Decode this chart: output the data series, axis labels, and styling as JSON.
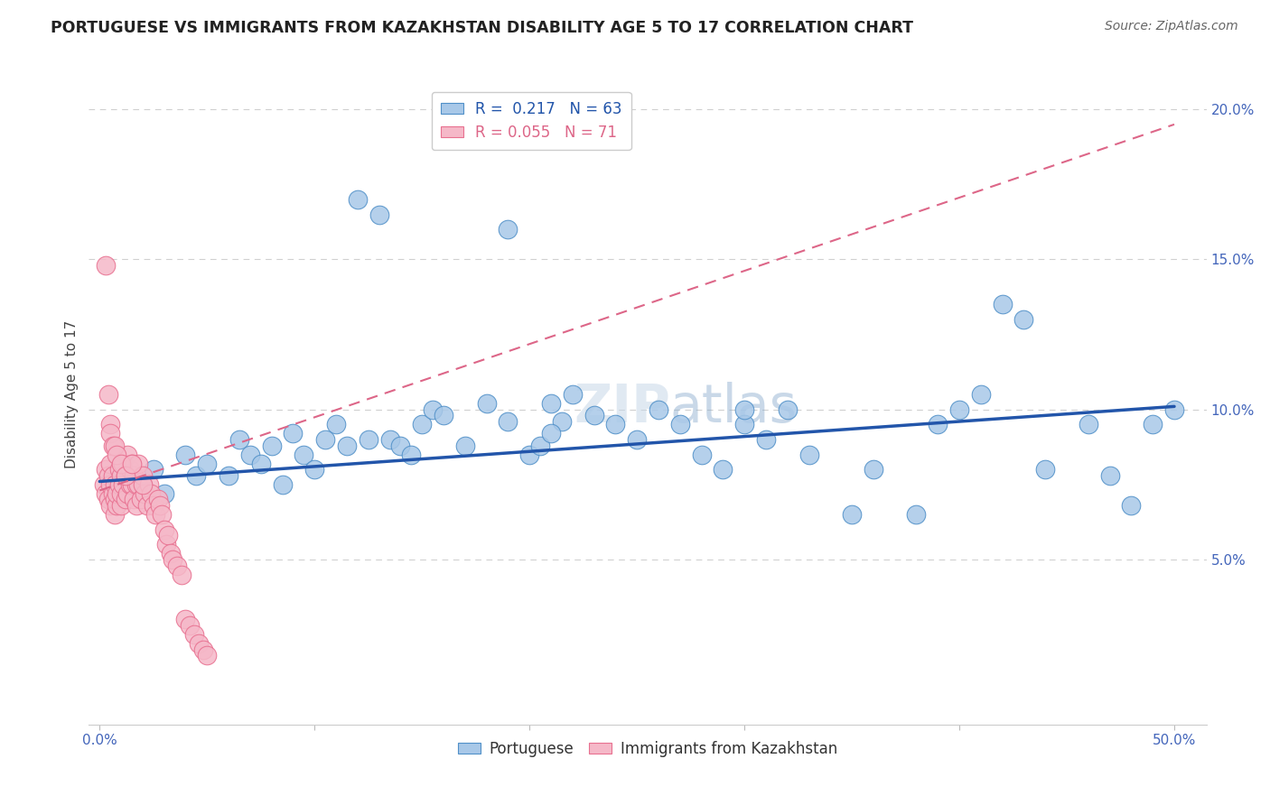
{
  "title": "PORTUGUESE VS IMMIGRANTS FROM KAZAKHSTAN DISABILITY AGE 5 TO 17 CORRELATION CHART",
  "source": "Source: ZipAtlas.com",
  "ylabel": "Disability Age 5 to 17",
  "xlim": [
    -0.005,
    0.515
  ],
  "ylim": [
    -0.005,
    0.215
  ],
  "xticks": [
    0.0,
    0.1,
    0.2,
    0.3,
    0.4,
    0.5
  ],
  "xtick_labels": [
    "0.0%",
    "",
    "",
    "",
    "",
    "50.0%"
  ],
  "yticks_right": [
    0.05,
    0.1,
    0.15,
    0.2
  ],
  "ytick_labels_right": [
    "5.0%",
    "10.0%",
    "15.0%",
    "20.0%"
  ],
  "blue_R": 0.217,
  "blue_N": 63,
  "pink_R": 0.055,
  "pink_N": 71,
  "blue_fill": "#a8c8e8",
  "pink_fill": "#f5b8c8",
  "blue_edge": "#5090c8",
  "pink_edge": "#e87090",
  "blue_line_color": "#2255aa",
  "pink_line_color": "#dd6688",
  "grid_color": "#d0d0d0",
  "background_color": "#ffffff",
  "blue_x": [
    0.02,
    0.025,
    0.03,
    0.04,
    0.045,
    0.05,
    0.06,
    0.065,
    0.07,
    0.075,
    0.08,
    0.085,
    0.09,
    0.095,
    0.1,
    0.105,
    0.11,
    0.115,
    0.12,
    0.125,
    0.13,
    0.135,
    0.14,
    0.145,
    0.15,
    0.155,
    0.16,
    0.17,
    0.18,
    0.19,
    0.2,
    0.205,
    0.21,
    0.215,
    0.22,
    0.23,
    0.24,
    0.25,
    0.26,
    0.27,
    0.28,
    0.29,
    0.3,
    0.31,
    0.32,
    0.33,
    0.35,
    0.36,
    0.38,
    0.39,
    0.4,
    0.41,
    0.42,
    0.43,
    0.44,
    0.46,
    0.47,
    0.48,
    0.49,
    0.5,
    0.19,
    0.21,
    0.3
  ],
  "blue_y": [
    0.075,
    0.08,
    0.072,
    0.085,
    0.078,
    0.082,
    0.078,
    0.09,
    0.085,
    0.082,
    0.088,
    0.075,
    0.092,
    0.085,
    0.08,
    0.09,
    0.095,
    0.088,
    0.17,
    0.09,
    0.165,
    0.09,
    0.088,
    0.085,
    0.095,
    0.1,
    0.098,
    0.088,
    0.102,
    0.16,
    0.085,
    0.088,
    0.102,
    0.096,
    0.105,
    0.098,
    0.095,
    0.09,
    0.1,
    0.095,
    0.085,
    0.08,
    0.095,
    0.09,
    0.1,
    0.085,
    0.065,
    0.08,
    0.065,
    0.095,
    0.1,
    0.105,
    0.135,
    0.13,
    0.08,
    0.095,
    0.078,
    0.068,
    0.095,
    0.1,
    0.096,
    0.092,
    0.1
  ],
  "pink_x": [
    0.002,
    0.003,
    0.003,
    0.004,
    0.004,
    0.005,
    0.005,
    0.005,
    0.006,
    0.006,
    0.007,
    0.007,
    0.007,
    0.008,
    0.008,
    0.009,
    0.009,
    0.01,
    0.01,
    0.01,
    0.011,
    0.011,
    0.012,
    0.012,
    0.013,
    0.013,
    0.014,
    0.014,
    0.015,
    0.015,
    0.016,
    0.016,
    0.017,
    0.017,
    0.018,
    0.018,
    0.019,
    0.02,
    0.021,
    0.022,
    0.023,
    0.024,
    0.025,
    0.026,
    0.027,
    0.028,
    0.029,
    0.03,
    0.031,
    0.032,
    0.033,
    0.034,
    0.036,
    0.038,
    0.04,
    0.042,
    0.044,
    0.046,
    0.048,
    0.05,
    0.003,
    0.004,
    0.005,
    0.005,
    0.006,
    0.007,
    0.008,
    0.01,
    0.012,
    0.015,
    0.02
  ],
  "pink_y": [
    0.075,
    0.072,
    0.08,
    0.07,
    0.078,
    0.075,
    0.068,
    0.082,
    0.072,
    0.078,
    0.065,
    0.07,
    0.075,
    0.068,
    0.072,
    0.08,
    0.075,
    0.068,
    0.072,
    0.078,
    0.082,
    0.075,
    0.07,
    0.078,
    0.085,
    0.072,
    0.08,
    0.075,
    0.082,
    0.075,
    0.078,
    0.07,
    0.068,
    0.075,
    0.082,
    0.075,
    0.07,
    0.078,
    0.072,
    0.068,
    0.075,
    0.072,
    0.068,
    0.065,
    0.07,
    0.068,
    0.065,
    0.06,
    0.055,
    0.058,
    0.052,
    0.05,
    0.048,
    0.045,
    0.03,
    0.028,
    0.025,
    0.022,
    0.02,
    0.018,
    0.148,
    0.105,
    0.095,
    0.092,
    0.088,
    0.088,
    0.085,
    0.082,
    0.078,
    0.082,
    0.075
  ],
  "blue_trend_x": [
    0.0,
    0.5
  ],
  "blue_trend_y": [
    0.076,
    0.101
  ],
  "pink_trend_x": [
    0.0,
    0.5
  ],
  "pink_trend_y": [
    0.073,
    0.195
  ]
}
